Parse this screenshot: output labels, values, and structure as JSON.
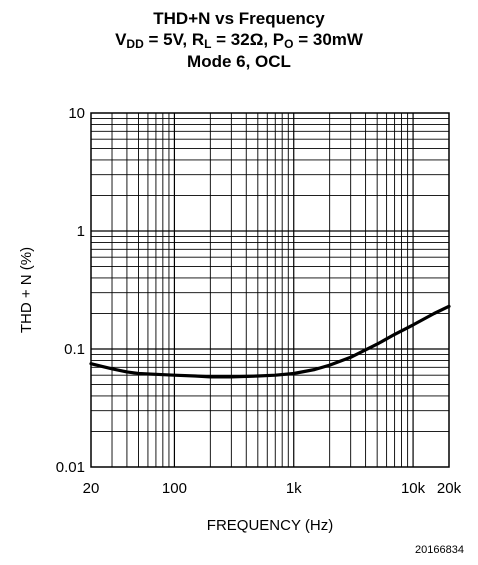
{
  "chart_data": {
    "type": "line",
    "title_line1": "THD+N vs Frequency",
    "title_line2": {
      "vdd_sym": "V",
      "vdd_sub": "DD",
      "vdd_val": " = 5V, ",
      "rl_sym": "R",
      "rl_sub": "L",
      "rl_val": " = 32Ω, ",
      "po_sym": "P",
      "po_sub": "O",
      "po_val": " = 30mW"
    },
    "title_line3": "Mode 6, OCL",
    "xlabel": "FREQUENCY (Hz)",
    "ylabel": "THD + N (%)",
    "x_scale": "log",
    "y_scale": "log",
    "xlim": [
      20,
      20000
    ],
    "ylim": [
      0.01,
      10
    ],
    "x_ticks": [
      {
        "value": 20,
        "label": "20"
      },
      {
        "value": 100,
        "label": "100"
      },
      {
        "value": 1000,
        "label": "1k"
      },
      {
        "value": 10000,
        "label": "10k"
      },
      {
        "value": 20000,
        "label": "20k"
      }
    ],
    "y_ticks": [
      {
        "value": 0.01,
        "label": "0.01"
      },
      {
        "value": 0.1,
        "label": "0.1"
      },
      {
        "value": 1,
        "label": "1"
      },
      {
        "value": 10,
        "label": "10"
      }
    ],
    "grid": true,
    "series": [
      {
        "color": "#000000",
        "x": [
          20,
          25,
          30,
          40,
          50,
          70,
          100,
          150,
          200,
          300,
          500,
          700,
          1000,
          1500,
          2000,
          3000,
          5000,
          7000,
          10000,
          15000,
          20000
        ],
        "y": [
          0.075,
          0.071,
          0.068,
          0.064,
          0.062,
          0.061,
          0.06,
          0.059,
          0.058,
          0.058,
          0.059,
          0.06,
          0.062,
          0.067,
          0.073,
          0.085,
          0.11,
          0.133,
          0.16,
          0.2,
          0.23
        ]
      }
    ]
  },
  "figure_id": "20166834"
}
